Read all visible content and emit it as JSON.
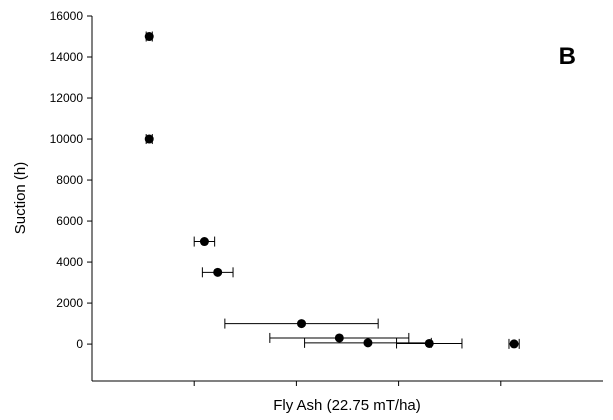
{
  "chart_data": {
    "type": "scatter",
    "title": "",
    "panel_label": "B",
    "xlabel": "Fly Ash (22.75 mT/ha)",
    "ylabel": "Suction (h)",
    "ylim": [
      -1800,
      16000
    ],
    "yticks": [
      0,
      2000,
      4000,
      6000,
      8000,
      10000,
      12000,
      14000,
      16000
    ],
    "ytick_labels": [
      "0",
      "2000",
      "4000",
      "6000",
      "8000",
      "10000",
      "12000",
      "14000",
      "16000"
    ],
    "xlim": [
      0,
      0.5
    ],
    "xticks": [
      0.1,
      0.2,
      0.3,
      0.4
    ],
    "grid": false,
    "marker_color": "#000000",
    "series": [
      {
        "points": [
          {
            "x": 0.056,
            "y": 15000,
            "xerr": 0.003
          },
          {
            "x": 0.056,
            "y": 10000,
            "xerr": 0.003
          },
          {
            "x": 0.11,
            "y": 5000,
            "xerr": 0.01
          },
          {
            "x": 0.123,
            "y": 3500,
            "xerr": 0.015
          },
          {
            "x": 0.205,
            "y": 1000,
            "xerr": 0.075
          },
          {
            "x": 0.242,
            "y": 300,
            "xerr": 0.068
          },
          {
            "x": 0.27,
            "y": 60,
            "xerr": 0.062
          },
          {
            "x": 0.33,
            "y": 30,
            "xerr": 0.032
          },
          {
            "x": 0.413,
            "y": 10,
            "xerr": 0.005
          }
        ]
      }
    ]
  }
}
